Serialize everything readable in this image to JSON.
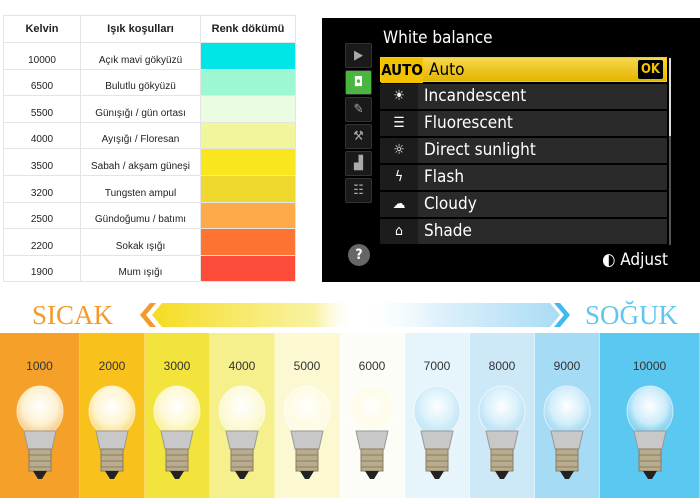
{
  "table": {
    "headers": [
      "Kelvin",
      "Işık koşulları",
      "Renk dökümü"
    ],
    "rows": [
      {
        "kelvin": "10000",
        "condition": "Açık mavi gökyüzü",
        "color": "#00e6e6"
      },
      {
        "kelvin": "6500",
        "condition": "Bulutlu gökyüzü",
        "color": "#9cf7d2"
      },
      {
        "kelvin": "5500",
        "condition": "Günışığı / gün ortası",
        "color": "#eafde2"
      },
      {
        "kelvin": "4000",
        "condition": "Ayışığı / Floresan",
        "color": "#f1f59c"
      },
      {
        "kelvin": "3500",
        "condition": "Sabah / akşam güneşi",
        "color": "#f9e61f"
      },
      {
        "kelvin": "3200",
        "condition": "Tungsten ampul",
        "color": "#f0d92f"
      },
      {
        "kelvin": "2500",
        "condition": "Gündoğumu / batımı",
        "color": "#fcaa4a"
      },
      {
        "kelvin": "2200",
        "condition": "Sokak ışığı",
        "color": "#fd7332"
      },
      {
        "kelvin": "1900",
        "condition": "Mum ışığı",
        "color": "#fe4c3b"
      }
    ]
  },
  "camera": {
    "title": "White balance",
    "ok": "OK",
    "adjust": "Adjust",
    "help": "?",
    "side_icons": [
      "playback-icon",
      "camera-icon",
      "pencil-icon",
      "wrench-icon",
      "retouch-icon",
      "my-menu-icon"
    ],
    "items": [
      {
        "icon": "AUTO",
        "label": "Auto",
        "selected": true
      },
      {
        "icon": "☀",
        "label": "Incandescent",
        "icon_name": "incandescent-icon"
      },
      {
        "icon": "☰",
        "label": "Fluorescent",
        "icon_name": "fluorescent-icon"
      },
      {
        "icon": "☼",
        "label": "Direct sunlight",
        "icon_name": "sun-icon"
      },
      {
        "icon": "ϟ",
        "label": "Flash",
        "icon_name": "flash-icon"
      },
      {
        "icon": "☁",
        "label": "Cloudy",
        "icon_name": "cloud-icon"
      },
      {
        "icon": "⌂",
        "label": "Shade",
        "icon_name": "shade-icon"
      }
    ]
  },
  "scale": {
    "warm": "SICAK",
    "cool": "SOĞUK",
    "warm_color": "#f39a2b",
    "cool_color": "#5ec6ef",
    "panels": [
      {
        "k": "1000",
        "color": "#f5a028"
      },
      {
        "k": "2000",
        "color": "#f8c11c"
      },
      {
        "k": "3000",
        "color": "#f2e43c"
      },
      {
        "k": "4000",
        "color": "#f5f08c"
      },
      {
        "k": "5000",
        "color": "#fbf8d2"
      },
      {
        "k": "6000",
        "color": "#fbfdf6"
      },
      {
        "k": "7000",
        "color": "#e6f4fb"
      },
      {
        "k": "8000",
        "color": "#cde9f8"
      },
      {
        "k": "9000",
        "color": "#a5dbf5"
      },
      {
        "k": "10000",
        "color": "#5ac8f0"
      }
    ]
  }
}
